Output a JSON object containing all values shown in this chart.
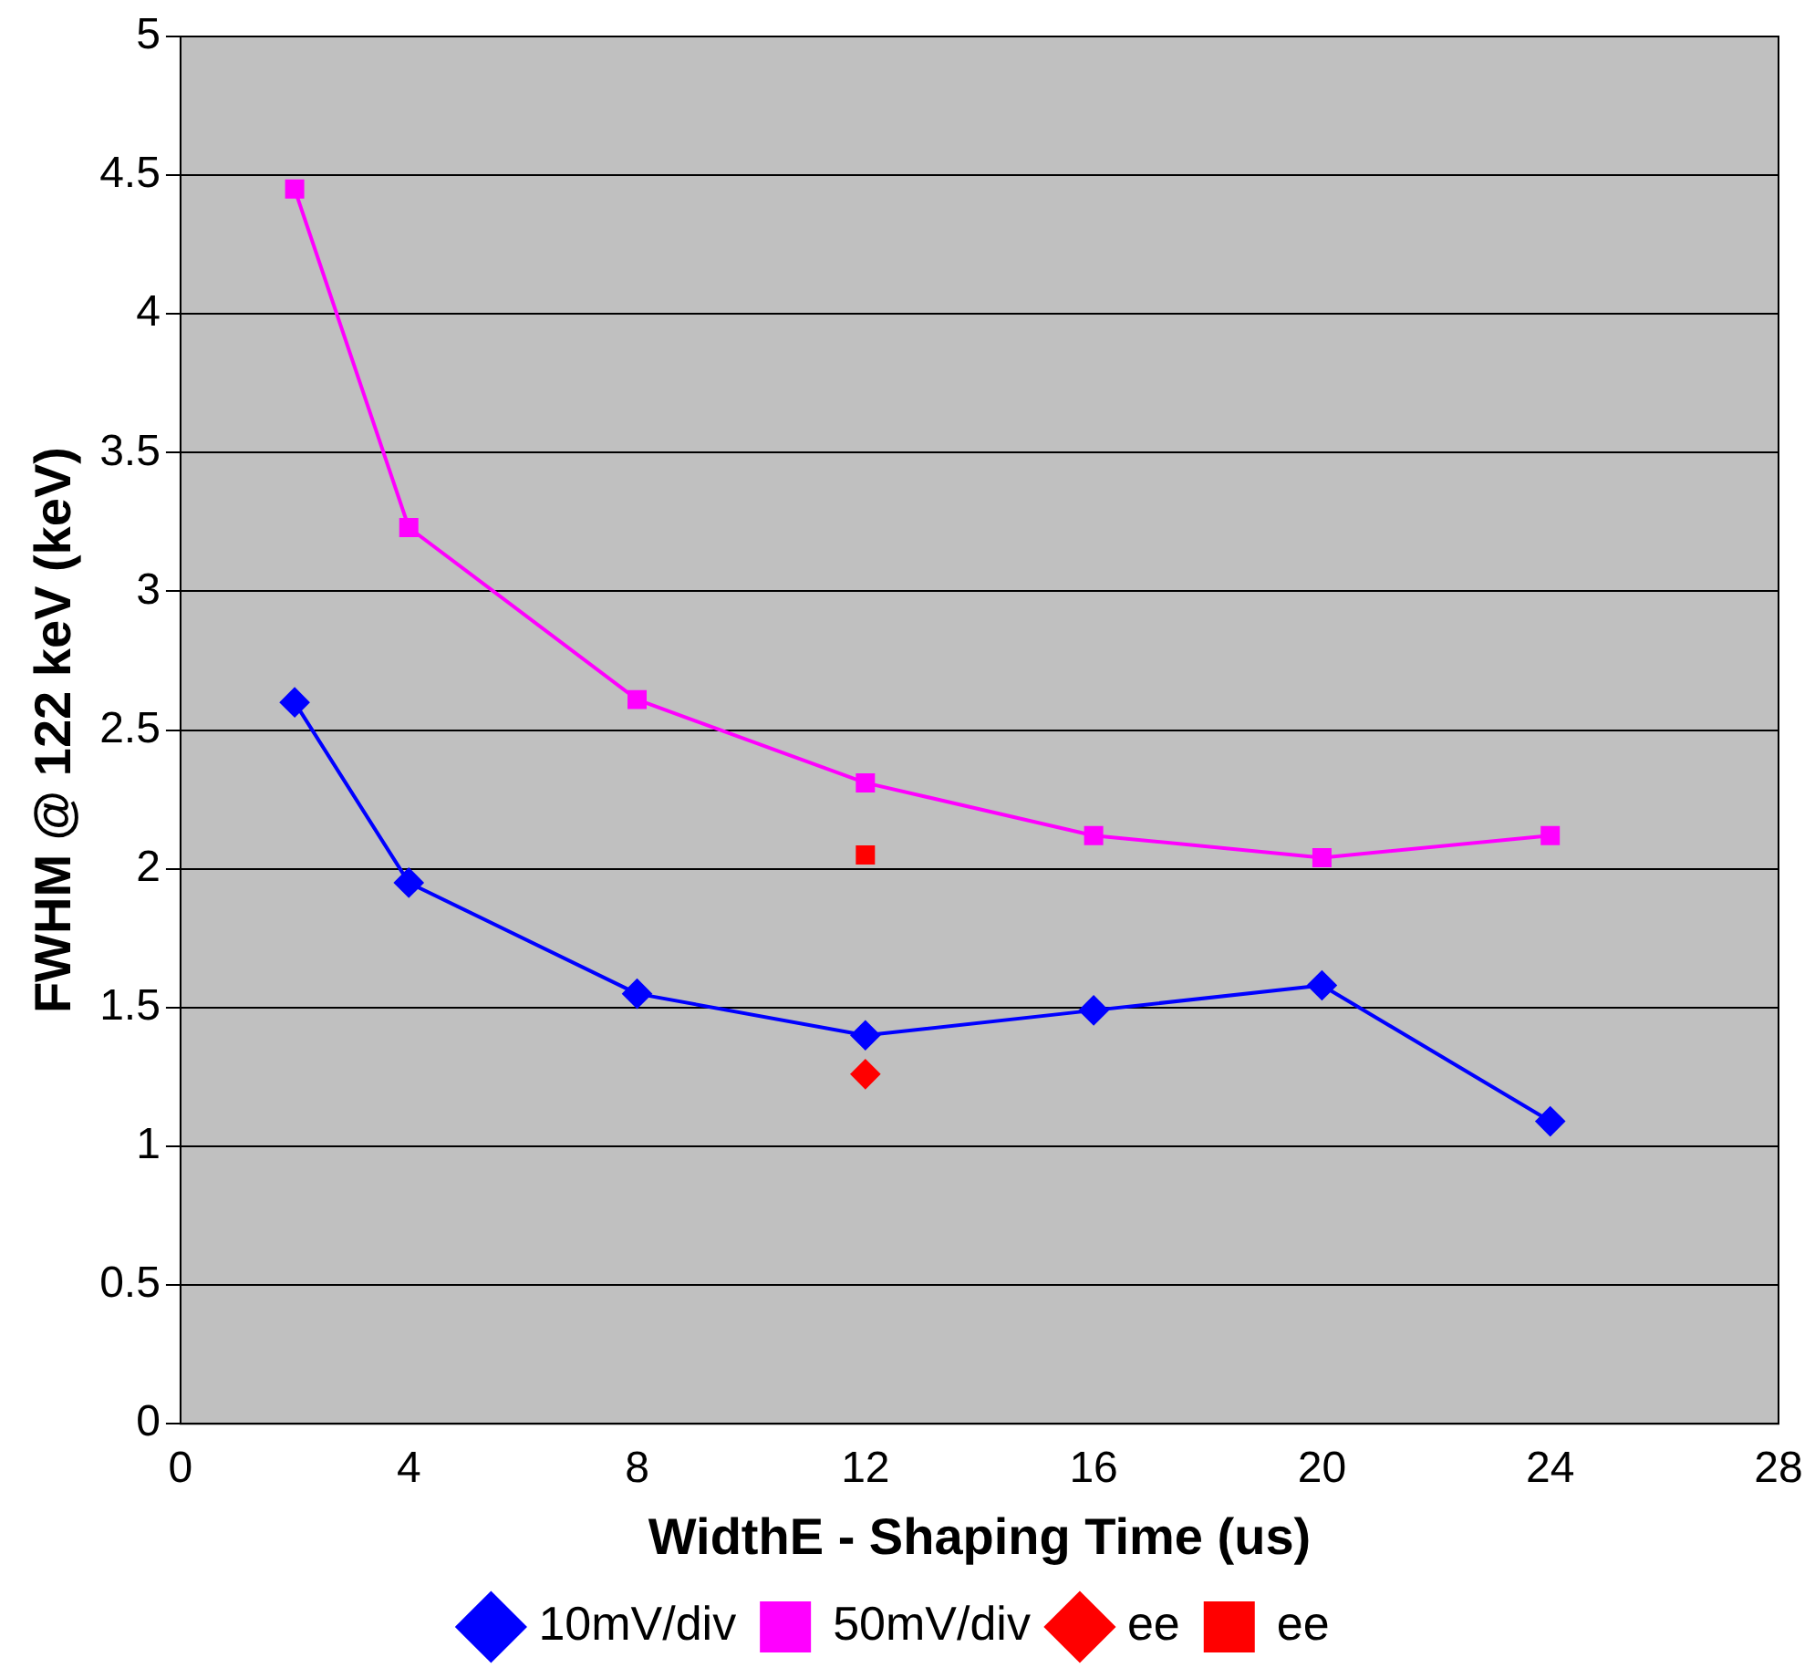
{
  "chart_data": {
    "type": "line",
    "xlabel": "WidthE - Shaping Time (us)",
    "ylabel": "FWHM @ 122 keV (keV)",
    "xlim": [
      0,
      28
    ],
    "xticks": [
      0,
      4,
      8,
      12,
      16,
      20,
      24,
      28
    ],
    "ylim": [
      0,
      5
    ],
    "yticks": [
      0,
      0.5,
      1,
      1.5,
      2,
      2.5,
      3,
      3.5,
      4,
      4.5,
      5
    ],
    "grid": "y",
    "legend": "bottom",
    "series": [
      {
        "name": "10mV/div",
        "color": "#0000ff",
        "marker": "diamond",
        "x": [
          2,
          4,
          8,
          12,
          16,
          20,
          24
        ],
        "values": [
          2.6,
          1.95,
          1.55,
          1.4,
          1.49,
          1.58,
          1.09
        ]
      },
      {
        "name": "50mV/div",
        "color": "#ff00ff",
        "marker": "square",
        "x": [
          2,
          4,
          8,
          12,
          16,
          20,
          24
        ],
        "values": [
          4.45,
          3.23,
          2.61,
          2.31,
          2.12,
          2.04,
          2.12
        ]
      },
      {
        "name": "ee",
        "type": "scatter",
        "color": "#ff0000",
        "marker": "diamond",
        "x": [
          12
        ],
        "values": [
          1.26
        ]
      },
      {
        "name": "ee",
        "type": "scatter",
        "color": "#ff0000",
        "marker": "square",
        "x": [
          12
        ],
        "values": [
          2.05
        ]
      }
    ]
  }
}
